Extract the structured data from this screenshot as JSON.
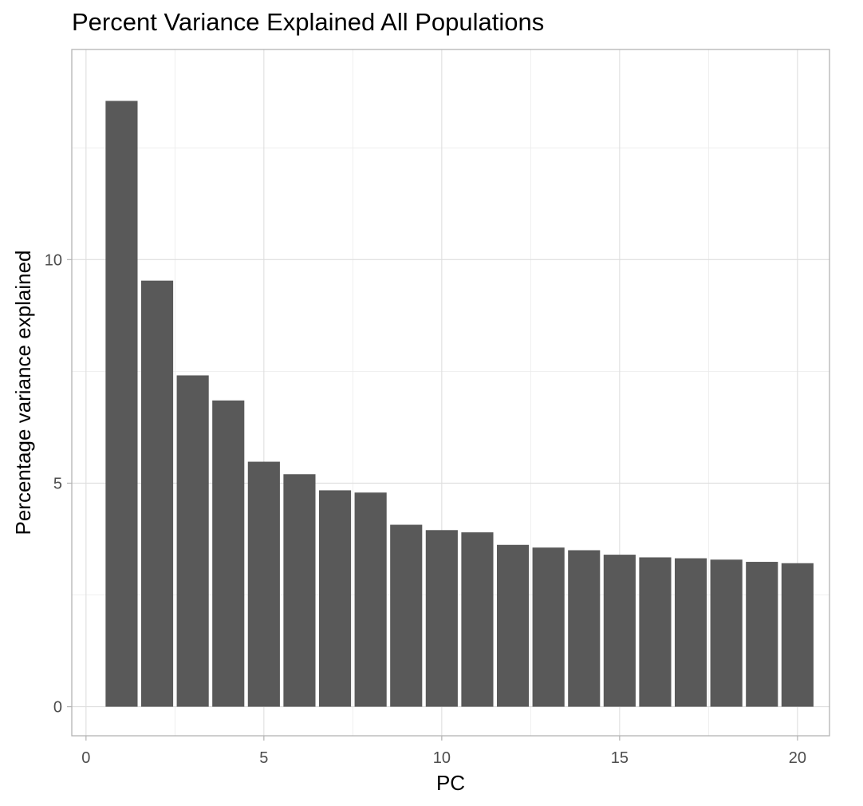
{
  "chart_data": {
    "type": "bar",
    "title": "Percent Variance Explained All Populations",
    "xlabel": "PC",
    "ylabel": "Percentage variance explained",
    "x": [
      1,
      2,
      3,
      4,
      5,
      6,
      7,
      8,
      9,
      10,
      11,
      12,
      13,
      14,
      15,
      16,
      17,
      18,
      19,
      20
    ],
    "values": [
      13.55,
      9.53,
      7.41,
      6.85,
      5.48,
      5.2,
      4.84,
      4.79,
      4.07,
      3.95,
      3.9,
      3.62,
      3.56,
      3.5,
      3.4,
      3.34,
      3.32,
      3.29,
      3.24,
      3.21
    ],
    "xlim": [
      -0.4,
      20.9
    ],
    "ylim": [
      -0.65,
      14.7
    ],
    "xticks": [
      0,
      5,
      10,
      15,
      20
    ],
    "yticks": [
      0,
      5,
      10
    ],
    "grid": true,
    "bar_color": "#595959",
    "panel_border_color": "#b3b3b3",
    "grid_color": "#ebebeb"
  }
}
